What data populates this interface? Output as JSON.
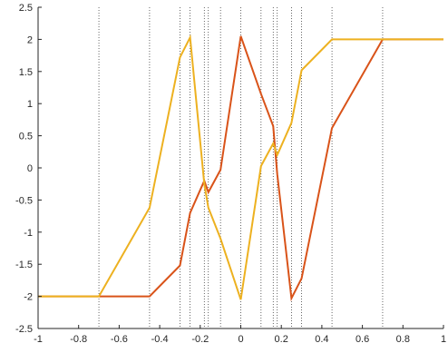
{
  "chart_data": {
    "type": "line",
    "title": "",
    "xlabel": "",
    "ylabel": "",
    "xlim": [
      -1,
      1
    ],
    "ylim": [
      -2.5,
      2.5
    ],
    "grid": false,
    "x_ticks": [
      -1,
      -0.8,
      -0.6,
      -0.4,
      -0.2,
      0,
      0.2,
      0.4,
      0.6,
      0.8,
      1
    ],
    "x_tick_labels": [
      "-1",
      "-0.8",
      "-0.6",
      "-0.4",
      "-0.2",
      "0",
      "0.2",
      "0.4",
      "0.6",
      "0.8",
      "1"
    ],
    "y_ticks": [
      -2.5,
      -2,
      -1.5,
      -1,
      -0.5,
      0,
      0.5,
      1,
      1.5,
      2,
      2.5
    ],
    "y_tick_labels": [
      "-2.5",
      "-2",
      "-1.5",
      "-1",
      "-0.5",
      "0",
      "0.5",
      "1",
      "1.5",
      "2",
      "2.5"
    ],
    "vertical_reference_lines": [
      -0.7,
      -0.45,
      -0.3,
      -0.25,
      -0.18,
      -0.16,
      -0.1,
      0,
      0.1,
      0.16,
      0.18,
      0.25,
      0.3,
      0.45,
      0.7
    ],
    "series": [
      {
        "color": "#D95319",
        "x": [
          -1,
          -0.7,
          -0.45,
          -0.3,
          -0.25,
          -0.18,
          -0.16,
          -0.1,
          0,
          0.1,
          0.16,
          0.18,
          0.25,
          0.3,
          0.45,
          0.7,
          1
        ],
        "y": [
          -2,
          -2,
          -2,
          -1.52,
          -0.7,
          -0.2,
          -0.38,
          -0.03,
          2.05,
          1.15,
          0.65,
          -0.1,
          -2.03,
          -1.72,
          0.62,
          2,
          2
        ]
      },
      {
        "color": "#EDB120",
        "x": [
          -1,
          -0.7,
          -0.45,
          -0.3,
          -0.25,
          -0.18,
          -0.16,
          -0.1,
          0,
          0.1,
          0.16,
          0.18,
          0.25,
          0.3,
          0.45,
          0.7,
          1
        ],
        "y": [
          -2,
          -2,
          -0.62,
          1.72,
          2.03,
          -0.25,
          -0.62,
          -1.1,
          -2.05,
          0.03,
          0.38,
          0.2,
          0.7,
          1.52,
          2,
          2,
          2
        ]
      }
    ]
  }
}
